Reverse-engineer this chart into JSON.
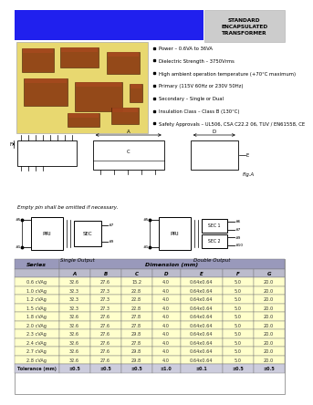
{
  "title": "STANDARD\nENCAPSULATED\nTRANSFORMER",
  "bullets": [
    "Power – 0.6VA to 36VA",
    "Dielectric Strength – 3750Vrms",
    "High ambient operation temperature (+70°C maximum)",
    "Primary (115V 60Hz or 230V 50Hz)",
    "Secondary – Single or Dual",
    "Insulation Class – Class B (130°C)",
    "Safety Approvals – UL506, CSA C22.2 06, TUV / EN61558, CE"
  ],
  "note": "Empty pin shall be omitted if necessary.",
  "series_col": "Series",
  "dim_label": "Dimension (mm)",
  "col_headers": [
    "A",
    "B",
    "C",
    "D",
    "E",
    "F",
    "G"
  ],
  "rows": [
    [
      "0.6 cVAg",
      "32.6",
      "27.6",
      "15.2",
      "4.0",
      "0.64x0.64",
      "5.0",
      "20.0"
    ],
    [
      "1.0 cVAg",
      "32.3",
      "27.3",
      "22.8",
      "4.0",
      "0.64x0.64",
      "5.0",
      "20.0"
    ],
    [
      "1.2 cVAg",
      "32.3",
      "27.3",
      "22.8",
      "4.0",
      "0.64x0.64",
      "5.0",
      "20.0"
    ],
    [
      "1.5 cVAg",
      "32.3",
      "27.3",
      "22.8",
      "4.0",
      "0.64x0.64",
      "5.0",
      "20.0"
    ],
    [
      "1.8 cVAg",
      "32.6",
      "27.6",
      "27.8",
      "4.0",
      "0.64x0.64",
      "5.0",
      "20.0"
    ],
    [
      "2.0 cVAg",
      "32.6",
      "27.6",
      "27.8",
      "4.0",
      "0.64x0.64",
      "5.0",
      "20.0"
    ],
    [
      "2.3 cVAg",
      "32.6",
      "27.6",
      "29.8",
      "4.0",
      "0.64x0.64",
      "5.0",
      "20.0"
    ],
    [
      "2.4 cVAg",
      "32.6",
      "27.6",
      "27.8",
      "4.0",
      "0.64x0.64",
      "5.0",
      "20.0"
    ],
    [
      "2.7 cVAg",
      "32.6",
      "27.6",
      "29.8",
      "4.0",
      "0.64x0.64",
      "5.0",
      "20.0"
    ],
    [
      "2.8 cVAg",
      "32.6",
      "27.6",
      "29.8",
      "4.0",
      "0.64x0.64",
      "5.0",
      "20.0"
    ]
  ],
  "tolerance_row": [
    "Tolerance (mm)",
    "±0.5",
    "±0.5",
    "±0.5",
    "±1.0",
    "±0.1",
    "±0.5",
    "±0.5"
  ],
  "bg_color": "#FFFFFF",
  "blue_color": "#2020EE",
  "gray_header_bg": "#CCCCCC",
  "photo_bg": "#E8D870",
  "transformer_color": "#8B3A10",
  "table_hdr_bg": "#9999BB",
  "table_hdr2_bg": "#BBBBCC",
  "table_row_bg": "#FFFFCC",
  "table_tol_bg": "#CCCCDD"
}
